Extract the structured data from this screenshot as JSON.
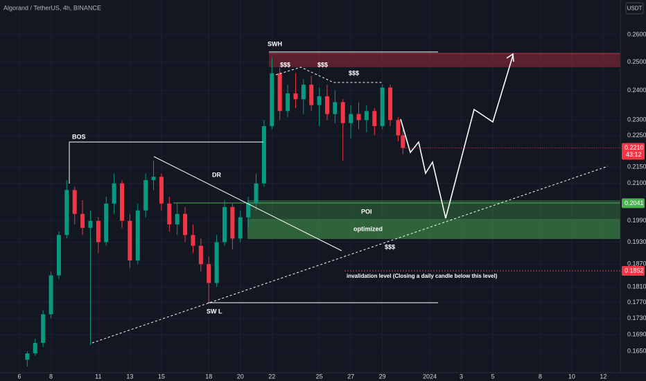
{
  "chart_data": {
    "type": "candlestick",
    "title": "Algorand / TetherUS, 4h, BINANCE",
    "currency": "USDT",
    "log_scale": true,
    "grid": true,
    "up_color": "#089981",
    "down_color": "#f23645",
    "x": [
      0.5,
      1,
      1.5,
      2,
      2.5,
      3,
      3.5,
      4,
      4.5,
      5,
      5.5,
      6,
      6.5,
      7,
      7.5,
      8,
      8.5,
      9,
      9.5,
      10,
      10.5,
      11,
      11.5,
      12,
      12.5,
      13,
      13.5,
      14,
      14.5,
      15,
      15.5,
      16,
      16.5,
      17,
      17.5,
      18,
      18.5,
      19,
      19.5,
      20,
      20.5,
      21,
      21.5,
      22,
      22.5,
      23,
      23.5,
      24,
      24.3
    ],
    "open": [
      0.163,
      0.1645,
      0.167,
      0.174,
      0.184,
      0.195,
      0.208,
      0.201,
      0.197,
      0.199,
      0.193,
      0.204,
      0.21,
      0.199,
      0.188,
      0.202,
      0.211,
      0.212,
      0.204,
      0.198,
      0.201,
      0.195,
      0.192,
      0.187,
      0.182,
      0.193,
      0.203,
      0.194,
      0.2,
      0.204,
      0.21,
      0.228,
      0.246,
      0.233,
      0.239,
      0.237,
      0.242,
      0.235,
      0.238,
      0.232,
      0.236,
      0.229,
      0.232,
      0.23,
      0.233,
      0.228,
      0.241,
      0.23,
      0.225
    ],
    "high": [
      0.165,
      0.168,
      0.175,
      0.185,
      0.196,
      0.211,
      0.209,
      0.205,
      0.202,
      0.2,
      0.206,
      0.213,
      0.211,
      0.201,
      0.204,
      0.213,
      0.217,
      0.213,
      0.206,
      0.204,
      0.203,
      0.198,
      0.194,
      0.189,
      0.195,
      0.205,
      0.204,
      0.202,
      0.206,
      0.213,
      0.23,
      0.2515,
      0.248,
      0.242,
      0.246,
      0.244,
      0.245,
      0.241,
      0.242,
      0.24,
      0.237,
      0.235,
      0.236,
      0.235,
      0.234,
      0.242,
      0.242,
      0.231,
      0.227
    ],
    "low": [
      0.1614,
      0.164,
      0.166,
      0.173,
      0.183,
      0.194,
      0.198,
      0.195,
      0.1665,
      0.19,
      0.192,
      0.201,
      0.197,
      0.186,
      0.187,
      0.2,
      0.208,
      0.202,
      0.196,
      0.195,
      0.193,
      0.19,
      0.185,
      0.177,
      0.181,
      0.192,
      0.191,
      0.193,
      0.197,
      0.202,
      0.209,
      0.227,
      0.23,
      0.231,
      0.234,
      0.232,
      0.233,
      0.228,
      0.23,
      0.229,
      0.217,
      0.224,
      0.227,
      0.226,
      0.225,
      0.227,
      0.228,
      0.223,
      0.219
    ],
    "close": [
      0.1645,
      0.167,
      0.174,
      0.184,
      0.195,
      0.208,
      0.201,
      0.197,
      0.199,
      0.193,
      0.204,
      0.21,
      0.199,
      0.188,
      0.202,
      0.211,
      0.212,
      0.204,
      0.198,
      0.201,
      0.195,
      0.192,
      0.187,
      0.182,
      0.193,
      0.203,
      0.194,
      0.2,
      0.204,
      0.21,
      0.228,
      0.246,
      0.233,
      0.239,
      0.237,
      0.242,
      0.235,
      0.238,
      0.232,
      0.236,
      0.229,
      0.232,
      0.23,
      0.233,
      0.228,
      0.241,
      0.23,
      0.225,
      0.221
    ],
    "xlim": [
      -1.23,
      38.08
    ],
    "xticks": [
      {
        "value": 0,
        "label": "6"
      },
      {
        "value": 2,
        "label": "8"
      },
      {
        "value": 5,
        "label": "11"
      },
      {
        "value": 7,
        "label": "13"
      },
      {
        "value": 9,
        "label": "15"
      },
      {
        "value": 12,
        "label": "18"
      },
      {
        "value": 14,
        "label": "20"
      },
      {
        "value": 16,
        "label": "22"
      },
      {
        "value": 19,
        "label": "25"
      },
      {
        "value": 21,
        "label": "27"
      },
      {
        "value": 23,
        "label": "29"
      },
      {
        "value": 26,
        "label": "2024"
      },
      {
        "value": 28,
        "label": "3"
      },
      {
        "value": 30,
        "label": "5"
      },
      {
        "value": 33,
        "label": "8"
      },
      {
        "value": 35,
        "label": "10"
      },
      {
        "value": 37,
        "label": "12"
      }
    ],
    "ylim": [
      0.16,
      0.2733
    ],
    "yticks": [
      {
        "value": 0.26,
        "label": "0.2600"
      },
      {
        "value": 0.25,
        "label": "0.2500"
      },
      {
        "value": 0.24,
        "label": "0.2400"
      },
      {
        "value": 0.23,
        "label": "0.2300"
      },
      {
        "value": 0.225,
        "label": "0.2250"
      },
      {
        "value": 0.215,
        "label": "0.2150"
      },
      {
        "value": 0.21,
        "label": "0.2100"
      },
      {
        "value": 0.199,
        "label": "0.1990"
      },
      {
        "value": 0.193,
        "label": "0.1930"
      },
      {
        "value": 0.187,
        "label": "0.1870"
      },
      {
        "value": 0.181,
        "label": "0.1810"
      },
      {
        "value": 0.177,
        "label": "0.1770"
      },
      {
        "value": 0.173,
        "label": "0.1730"
      },
      {
        "value": 0.169,
        "label": "0.1690"
      },
      {
        "value": 0.165,
        "label": "0.1650"
      }
    ],
    "last_price": {
      "value": 0.221,
      "label": "0.2210",
      "color": "#f23645"
    },
    "countdown": "43:12",
    "levels": [
      {
        "value": 0.2041,
        "label": "0.2041",
        "color": "#4caf50"
      },
      {
        "value": 0.1852,
        "label": "0.1852",
        "color": "#f23645"
      }
    ],
    "annotations": [
      "BOS",
      "DR",
      "SWH",
      "$$$",
      "$$$",
      "$$$",
      "POI",
      "optimized",
      "$$$",
      "SW L",
      "invalidation level (Closing a daily candle below this level)"
    ]
  }
}
